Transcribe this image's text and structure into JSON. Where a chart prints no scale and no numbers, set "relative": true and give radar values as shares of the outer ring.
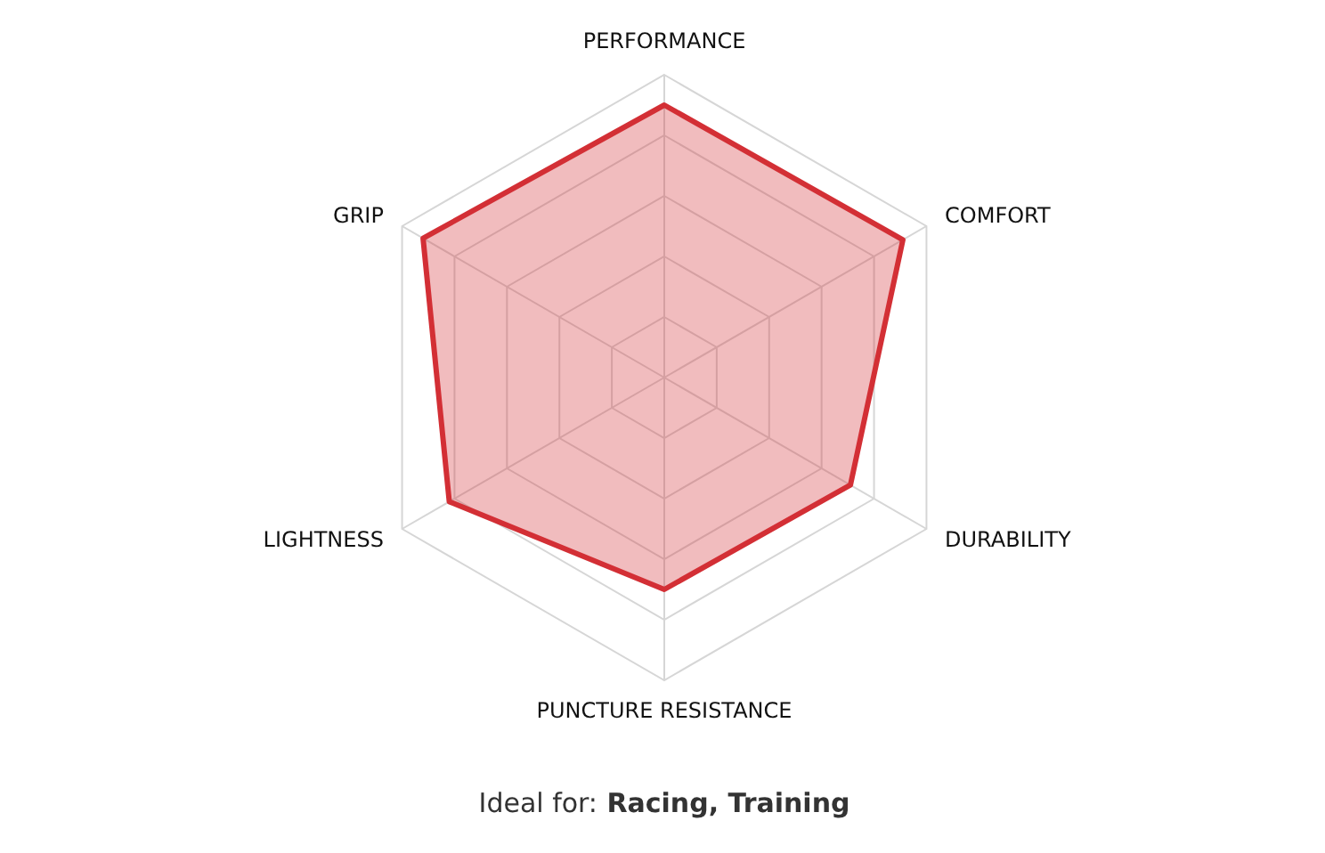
{
  "chart_data": {
    "type": "radar",
    "relative": true,
    "grid": true,
    "categories": [
      "PERFORMANCE",
      "COMFORT",
      "DURABILITY",
      "PUNCTURE RESISTANCE",
      "LIGHTNESS",
      "GRIP"
    ],
    "series": [
      {
        "color": "#d32f35",
        "values": [
          0.9,
          0.91,
          0.71,
          0.7,
          0.82,
          0.92
        ]
      }
    ],
    "annotations": [
      "Ideal for:",
      "Racing, Training"
    ]
  }
}
